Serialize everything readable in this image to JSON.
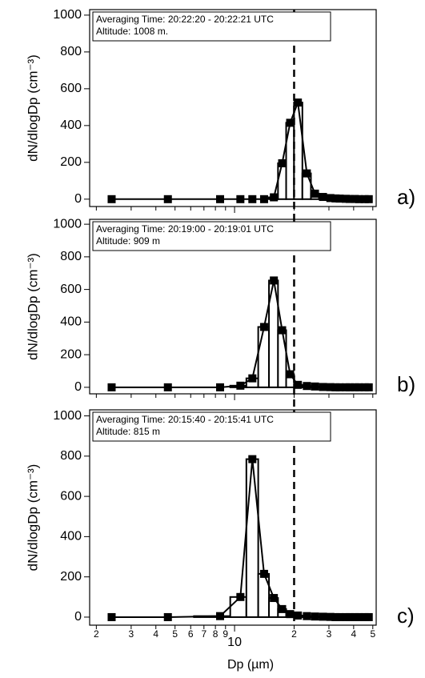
{
  "chart_data": [
    {
      "type": "bar",
      "annotation": [
        "Averaging Time: 20:22:20 - 20:22:21 UTC",
        "Altitude: 1008 m."
      ],
      "panel_label": "a)",
      "ylabel": "dN/dlogDp (cm⁻³)",
      "xlog": true,
      "xlim": [
        1.85,
        52
      ],
      "ylim": [
        -40,
        1030
      ],
      "yticks": [
        0,
        200,
        400,
        600,
        800,
        1000
      ],
      "xticks": [
        2,
        3,
        4,
        5,
        6,
        7,
        8,
        9,
        10,
        20,
        30,
        40,
        50
      ],
      "vline": 20,
      "x": [
        2.39,
        4.6,
        8.45,
        10.7,
        12.3,
        14.1,
        15.8,
        17.4,
        19.1,
        20.9,
        23.2,
        25.5,
        28,
        30.5,
        32.4,
        34,
        36.5,
        38.2,
        40.6,
        42.6,
        45.5,
        47.7
      ],
      "values": [
        0,
        0,
        0,
        0,
        0,
        0,
        10,
        195,
        415,
        525,
        140,
        30,
        12,
        6,
        4,
        3,
        2,
        1,
        1,
        0,
        0,
        0
      ]
    },
    {
      "type": "bar",
      "annotation": [
        "Averaging Time: 20:19:00 - 20:19:01 UTC",
        "Altitude: 909 m"
      ],
      "panel_label": "b)",
      "ylabel": "dN/dlogDp (cm⁻³)",
      "xlog": true,
      "xlim": [
        1.85,
        52
      ],
      "ylim": [
        -40,
        1030
      ],
      "yticks": [
        0,
        200,
        400,
        600,
        800,
        1000
      ],
      "xticks": [
        2,
        3,
        4,
        5,
        6,
        7,
        8,
        9,
        10,
        20,
        30,
        40,
        50
      ],
      "vline": 20,
      "x": [
        2.39,
        4.6,
        8.45,
        10.7,
        12.3,
        14.1,
        15.8,
        17.4,
        19.1,
        20.9,
        23.2,
        25.5,
        28,
        30.5,
        32.4,
        34,
        36.5,
        38.2,
        40.6,
        42.6,
        45.5,
        47.7
      ],
      "values": [
        0,
        0,
        0,
        10,
        55,
        370,
        655,
        350,
        80,
        15,
        8,
        5,
        2,
        1,
        0,
        0,
        0,
        0,
        0,
        0,
        0,
        0
      ]
    },
    {
      "type": "bar",
      "annotation": [
        "Averaging Time: 20:15:40 - 20:15:41 UTC",
        "Altitude: 815 m"
      ],
      "panel_label": "c)",
      "ylabel": "dN/dlogDp (cm⁻³)",
      "xlabel": "Dp (µm)",
      "xlog": true,
      "xlim": [
        1.85,
        52
      ],
      "ylim": [
        -40,
        1030
      ],
      "yticks": [
        0,
        200,
        400,
        600,
        800,
        1000
      ],
      "xticks": [
        2,
        3,
        4,
        5,
        6,
        7,
        8,
        9,
        10,
        {
          "value": 20,
          "label": "2"
        },
        {
          "value": 30,
          "label": "3"
        },
        {
          "value": 40,
          "label": "4"
        },
        {
          "value": 50,
          "label": "5"
        }
      ],
      "vline": 20,
      "x": [
        2.39,
        4.6,
        8.45,
        10.7,
        12.3,
        14.1,
        15.8,
        17.4,
        19.1,
        20.9,
        23.2,
        25.5,
        28,
        30.5,
        32.4,
        34,
        36.5,
        38.2,
        40.6,
        42.6,
        45.5,
        47.7
      ],
      "values": [
        0,
        0,
        5,
        100,
        785,
        215,
        95,
        40,
        15,
        8,
        5,
        3,
        2,
        1,
        0,
        0,
        0,
        0,
        0,
        0,
        0,
        0
      ]
    }
  ]
}
